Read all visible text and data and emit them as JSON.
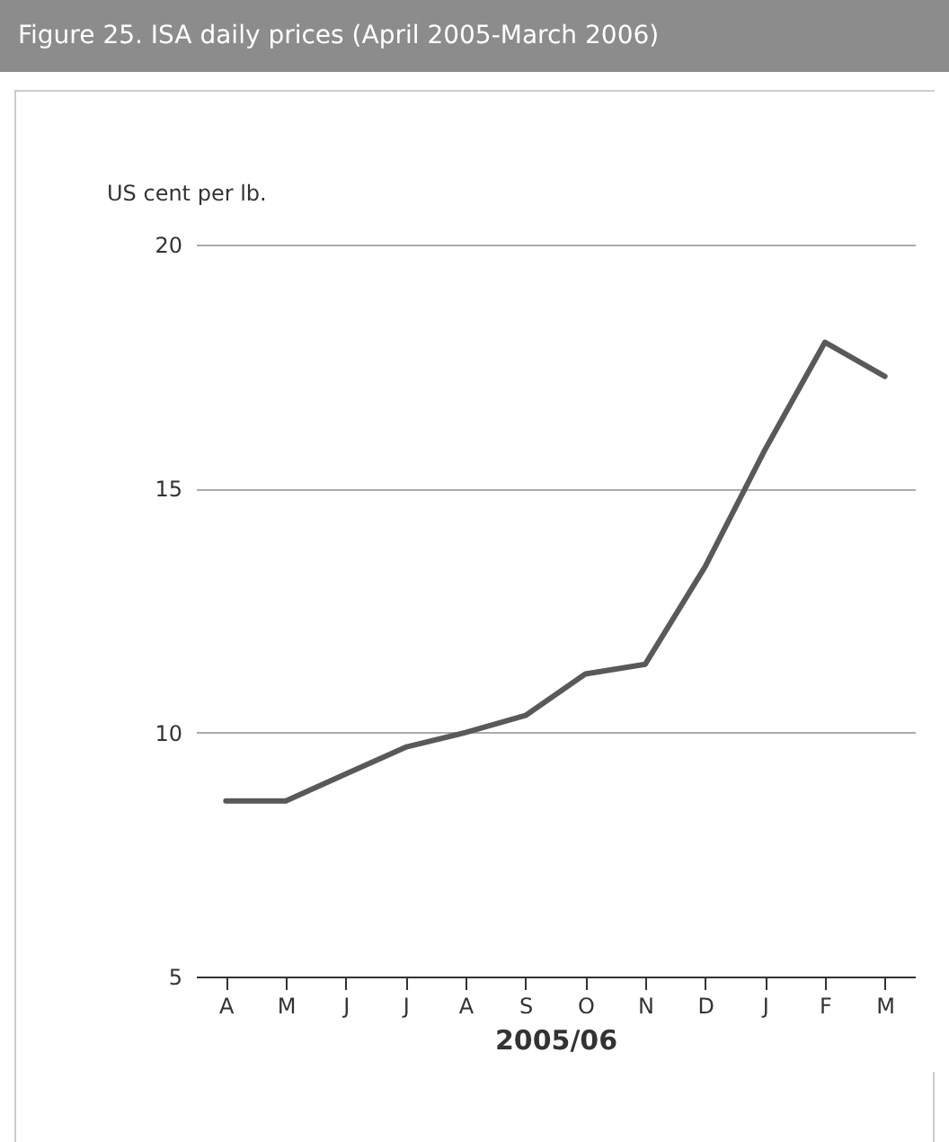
{
  "chart_data": {
    "type": "line",
    "title": "Figure 25. ISA daily prices (April 2005-March 2006)",
    "ylabel": "US cent per lb.",
    "xlabel": "2005/06",
    "categories": [
      "A",
      "M",
      "J",
      "J",
      "A",
      "S",
      "O",
      "N",
      "D",
      "J",
      "F",
      "M"
    ],
    "series": [
      {
        "color": "#595959",
        "values": [
          8.6,
          8.6,
          9.15,
          9.7,
          10.0,
          10.35,
          11.2,
          11.4,
          13.4,
          15.8,
          18.0,
          17.3
        ]
      }
    ],
    "ylim": [
      5,
      20
    ],
    "yticks": [
      5,
      10,
      15,
      20
    ],
    "grid": "y",
    "legend": false,
    "marker": "none",
    "line_style": "solid"
  }
}
